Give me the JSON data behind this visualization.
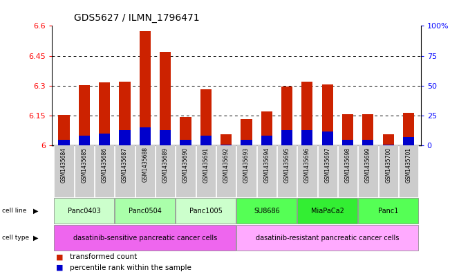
{
  "title": "GDS5627 / ILMN_1796471",
  "samples": [
    "GSM1435684",
    "GSM1435685",
    "GSM1435686",
    "GSM1435687",
    "GSM1435688",
    "GSM1435689",
    "GSM1435690",
    "GSM1435691",
    "GSM1435692",
    "GSM1435693",
    "GSM1435694",
    "GSM1435695",
    "GSM1435696",
    "GSM1435697",
    "GSM1435698",
    "GSM1435699",
    "GSM1435700",
    "GSM1435701"
  ],
  "transformed_count": [
    6.153,
    6.302,
    6.315,
    6.32,
    6.575,
    6.468,
    6.143,
    6.283,
    6.055,
    6.133,
    6.17,
    6.295,
    6.32,
    6.305,
    6.158,
    6.158,
    6.055,
    6.165
  ],
  "percentile_rank": [
    5,
    8,
    10,
    13,
    15,
    13,
    5,
    8,
    1,
    5,
    8,
    13,
    13,
    12,
    5,
    5,
    1,
    7
  ],
  "ymin": 6.0,
  "ymax": 6.6,
  "yticks": [
    6.0,
    6.15,
    6.3,
    6.45,
    6.6
  ],
  "yticklabels": [
    "6",
    "6.15",
    "6.3",
    "6.45",
    "6.6"
  ],
  "y2ticks": [
    0,
    25,
    50,
    75,
    100
  ],
  "y2ticklabels": [
    "0",
    "25",
    "50",
    "75",
    "100%"
  ],
  "bar_color_red": "#cc2200",
  "bar_color_blue": "#0000cc",
  "cell_lines": [
    {
      "name": "Panc0403",
      "start": 0,
      "end": 2,
      "color": "#ccffcc"
    },
    {
      "name": "Panc0504",
      "start": 3,
      "end": 5,
      "color": "#aaffaa"
    },
    {
      "name": "Panc1005",
      "start": 6,
      "end": 8,
      "color": "#ccffcc"
    },
    {
      "name": "SU8686",
      "start": 9,
      "end": 11,
      "color": "#55ff55"
    },
    {
      "name": "MiaPaCa2",
      "start": 12,
      "end": 14,
      "color": "#33ee33"
    },
    {
      "name": "Panc1",
      "start": 15,
      "end": 17,
      "color": "#55ff55"
    }
  ],
  "cell_types": [
    {
      "name": "dasatinib-sensitive pancreatic cancer cells",
      "start": 0,
      "end": 8,
      "color": "#ee66ee"
    },
    {
      "name": "dasatinib-resistant pancreatic cancer cells",
      "start": 9,
      "end": 17,
      "color": "#ffaaff"
    }
  ],
  "legend_red": "transformed count",
  "legend_blue": "percentile rank within the sample",
  "sample_bg_color": "#cccccc",
  "bar_width": 0.55
}
